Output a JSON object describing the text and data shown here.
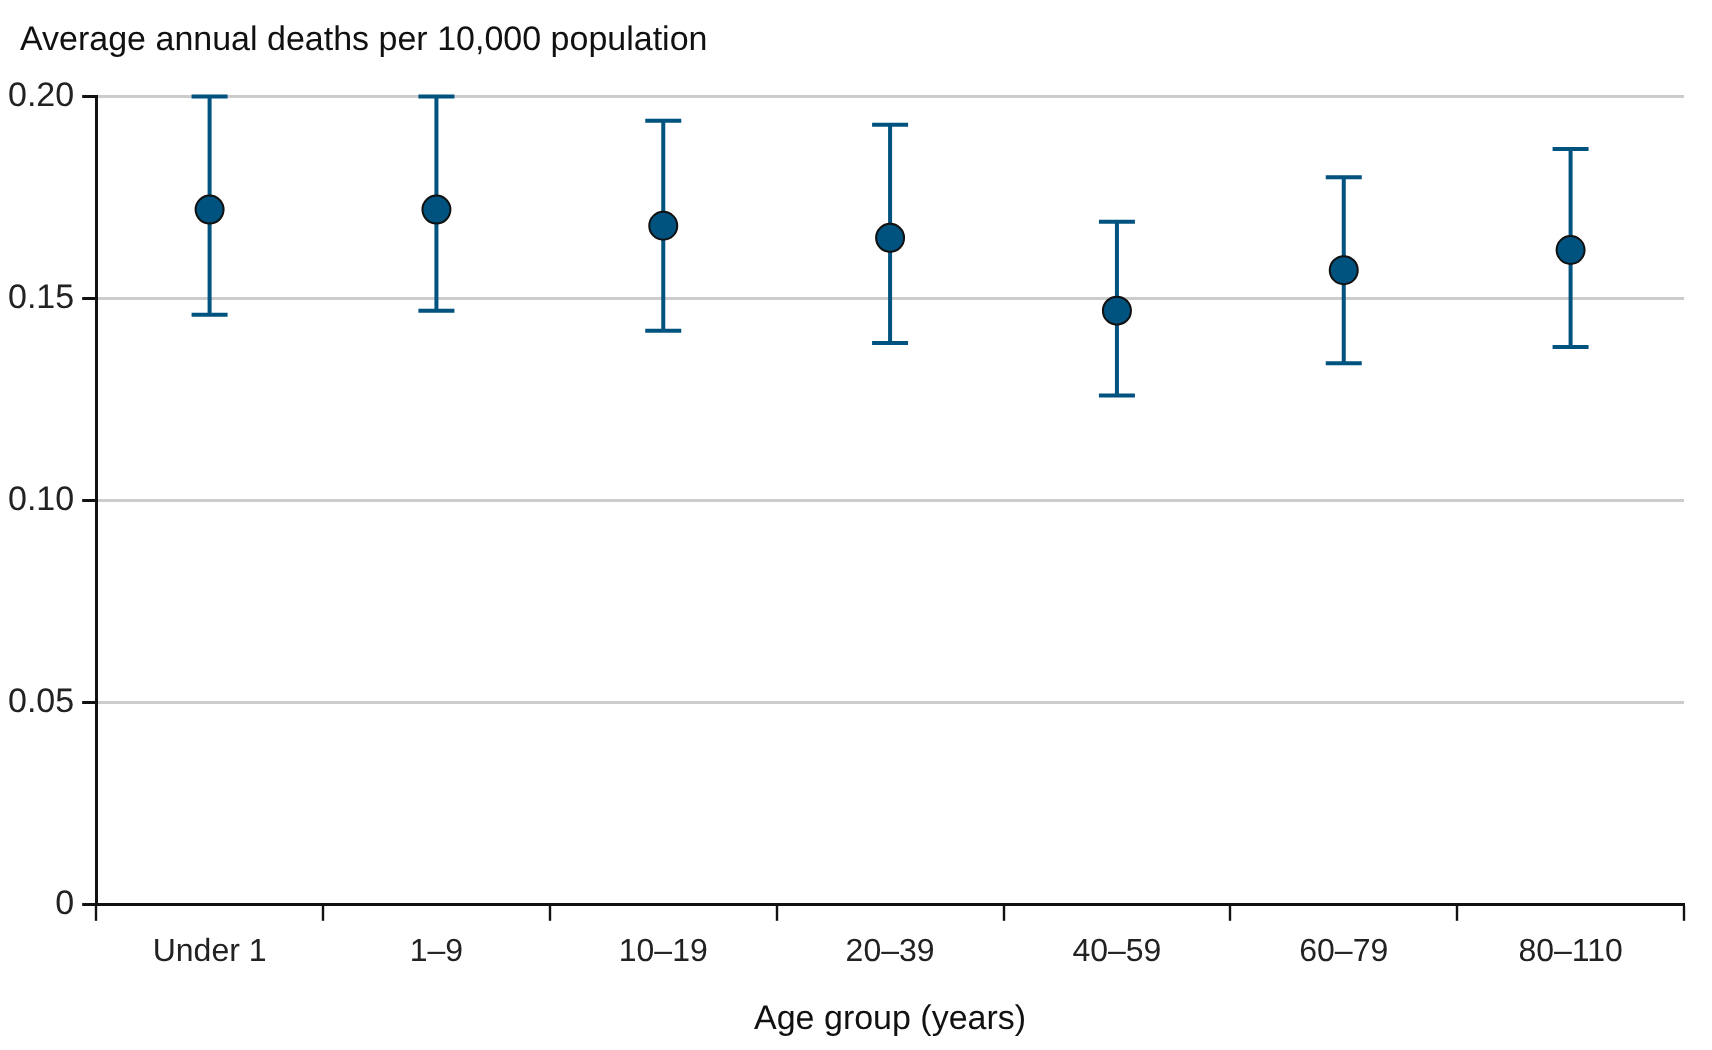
{
  "chart_data": {
    "type": "scatter",
    "ylabel": "Average annual deaths per 10,000 population",
    "xlabel": "Age group (years)",
    "categories": [
      "Under 1",
      "1–9",
      "10–19",
      "20–39",
      "40–59",
      "60–79",
      "80–110"
    ],
    "series": [
      {
        "color": "#00527f",
        "values": [
          0.172,
          0.172,
          0.168,
          0.165,
          0.147,
          0.157,
          0.162
        ],
        "errors": [
          [
            0.146,
            0.2
          ],
          [
            0.147,
            0.2
          ],
          [
            0.142,
            0.194
          ],
          [
            0.139,
            0.193
          ],
          [
            0.126,
            0.169
          ],
          [
            0.134,
            0.18
          ],
          [
            0.138,
            0.187
          ]
        ]
      }
    ],
    "ylim": [
      0,
      0.2
    ],
    "yticks": [
      {
        "value": 0,
        "label": "0"
      },
      {
        "value": 0.05,
        "label": "0.05"
      },
      {
        "value": 0.1,
        "label": "0.10"
      },
      {
        "value": 0.15,
        "label": "0.15"
      },
      {
        "value": 0.2,
        "label": "0.20"
      }
    ],
    "grid": "y",
    "marker": "circle",
    "legend": false
  }
}
